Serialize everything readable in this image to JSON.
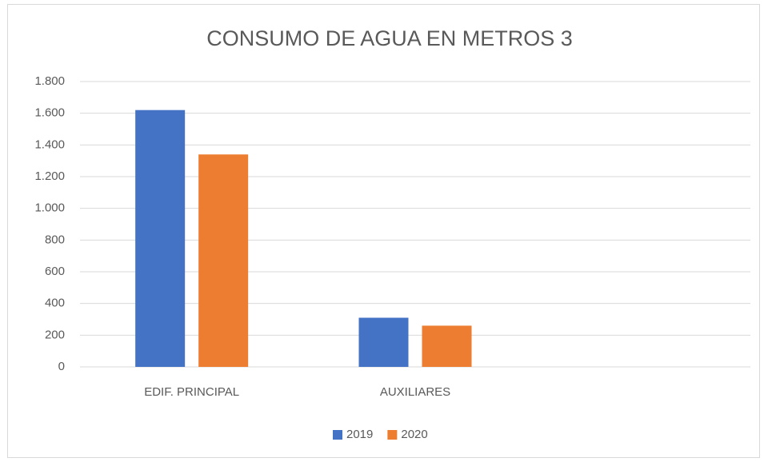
{
  "chart_data": {
    "type": "bar",
    "title": "CONSUMO DE AGUA EN METROS 3",
    "categories": [
      "EDIF. PRINCIPAL",
      "AUXILIARES",
      null
    ],
    "series": [
      {
        "name": "2019",
        "color": "#4472c4",
        "values": [
          1620,
          310,
          null
        ]
      },
      {
        "name": "2020",
        "color": "#ed7d31",
        "values": [
          1340,
          260,
          null
        ]
      }
    ],
    "ylim": [
      0,
      1800
    ],
    "yticks": [
      0,
      200,
      400,
      600,
      800,
      {
        "value": 1000,
        "label": "1.000"
      },
      {
        "value": 1200,
        "label": "1.200"
      },
      {
        "value": 1400,
        "label": "1.400"
      },
      {
        "value": 1600,
        "label": "1.600"
      },
      {
        "value": 1800,
        "label": "1.800"
      }
    ],
    "grid": true,
    "legend": "bottom"
  }
}
